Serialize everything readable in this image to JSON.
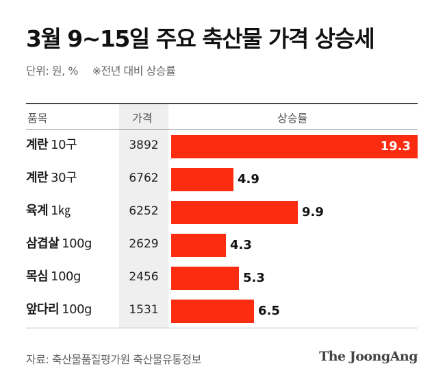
{
  "title": "3월 9~15일 주요 축산물 가격 상승세",
  "subtitle": {
    "unit": "단위: 원, %",
    "note": "※전년 대비 상승률"
  },
  "table_header": {
    "item": "품목",
    "price": "가격",
    "rate": "상승률"
  },
  "source": "자료: 축산물품질평가원 축산물유통정보",
  "brand": "The JoongAng",
  "colors": {
    "bar": "#fb2c0f"
  },
  "chart_data": {
    "type": "bar",
    "orientation": "horizontal",
    "title": "3월 9~15일 주요 축산물 가격 상승세",
    "subtitle": "단위: 원, %  ※전년 대비 상승률",
    "columns": [
      "품목",
      "가격",
      "상승률"
    ],
    "xlim": [
      0,
      19.3
    ],
    "rows": [
      {
        "name": "계란",
        "unit": "10구",
        "price": "3892",
        "rate": 19.3,
        "rate_label": "19.3"
      },
      {
        "name": "계란",
        "unit": "30구",
        "price": "6762",
        "rate": 4.9,
        "rate_label": "4.9"
      },
      {
        "name": "육계",
        "unit": "1㎏",
        "price": "6252",
        "rate": 9.9,
        "rate_label": "9.9"
      },
      {
        "name": "삼겹살",
        "unit": "100g",
        "price": "2629",
        "rate": 4.3,
        "rate_label": "4.3"
      },
      {
        "name": "목심",
        "unit": "100g",
        "price": "2456",
        "rate": 5.3,
        "rate_label": "5.3"
      },
      {
        "name": "앞다리",
        "unit": "100g",
        "price": "1531",
        "rate": 6.5,
        "rate_label": "6.5"
      }
    ],
    "source": "자료: 축산물품질평가원 축산물유통정보"
  }
}
